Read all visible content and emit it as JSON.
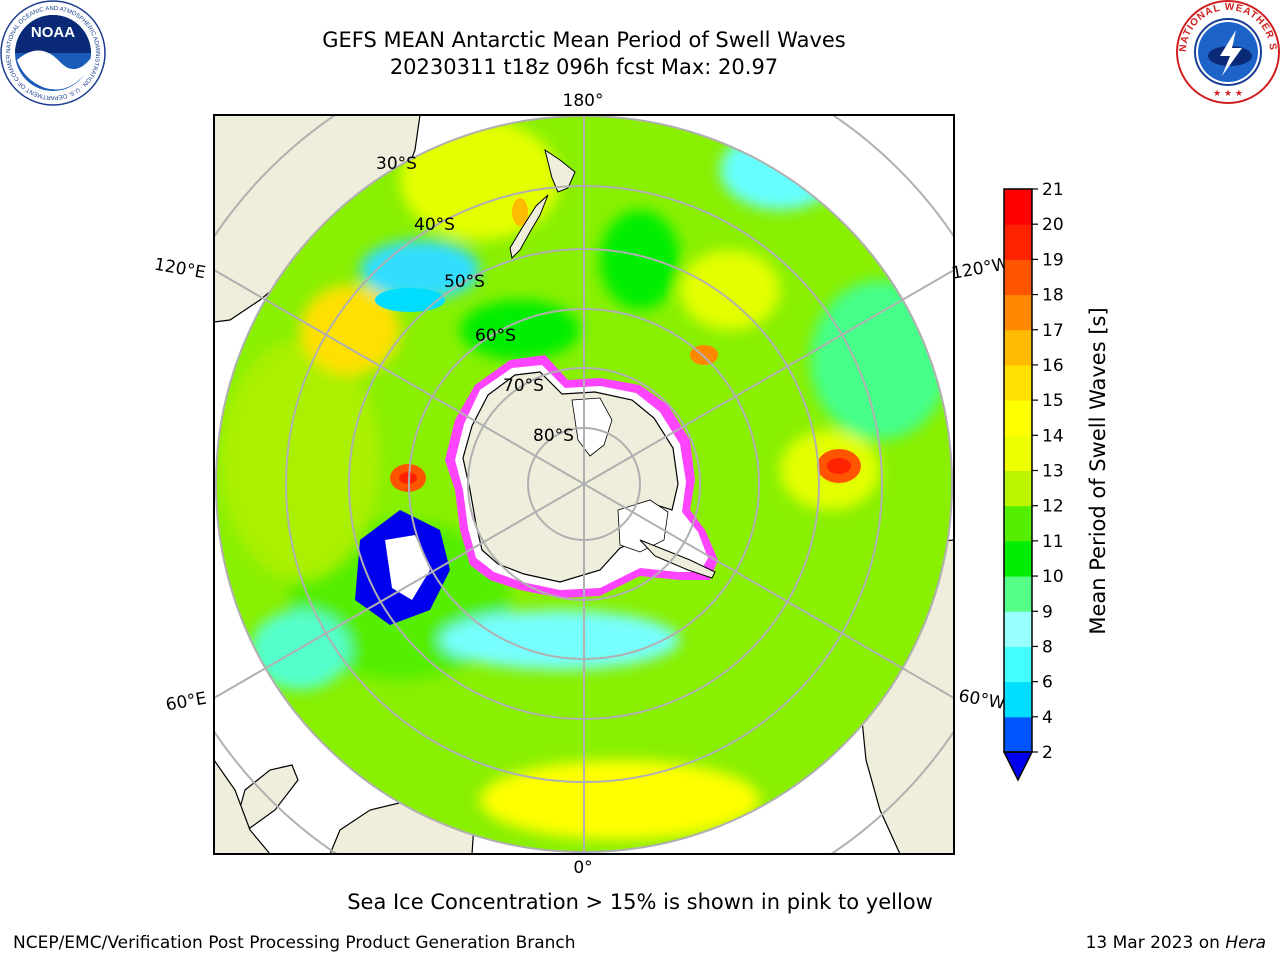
{
  "title": {
    "line1": "GEFS MEAN Antarctic Mean Period of Swell Waves",
    "line2": "20230311 t18z 096h fcst   Max: 20.97"
  },
  "logos": {
    "noaa_text": "NOAA",
    "noaa_ring": "NATIONAL OCEANIC AND ATMOSPHERIC ADMINISTRATION · U.S. DEPARTMENT OF COMMERCE",
    "nws_ring": "NATIONAL WEATHER SERVICE"
  },
  "map": {
    "projection": "south-polar-stereographic",
    "longitude_labels": [
      "180°",
      "120°E",
      "120°W",
      "60°E",
      "60°W",
      "0°"
    ],
    "latitude_labels": [
      "30°S",
      "40°S",
      "50°S",
      "60°S",
      "70°S",
      "80°S"
    ],
    "land_color": "#efeddb",
    "grid_color": "#b0b0b0",
    "sea_ice_colors": [
      "#ff44ff",
      "#ffff66"
    ]
  },
  "colorbar": {
    "label": "Mean Period of Swell Waves [s]",
    "ticks": [
      "2",
      "4",
      "6",
      "8",
      "9",
      "10",
      "11",
      "12",
      "13",
      "14",
      "15",
      "16",
      "17",
      "18",
      "19",
      "20",
      "21"
    ],
    "colors": [
      "#0055ff",
      "#00ddff",
      "#44ffff",
      "#99ffff",
      "#55ff88",
      "#00ee00",
      "#55ee00",
      "#bbf500",
      "#eeff00",
      "#ffff00",
      "#ffe000",
      "#ffbb00",
      "#ff8800",
      "#ff5500",
      "#ff2200",
      "#ff0000"
    ],
    "extend_color": "#0000ee"
  },
  "notes": {
    "ice": "Sea Ice Concentration > 15% is shown in pink to yellow",
    "footer_left": "NCEP/EMC/Verification Post Processing Product Generation Branch",
    "footer_date": "13 Mar 2023 on ",
    "footer_machine": "Hera"
  }
}
